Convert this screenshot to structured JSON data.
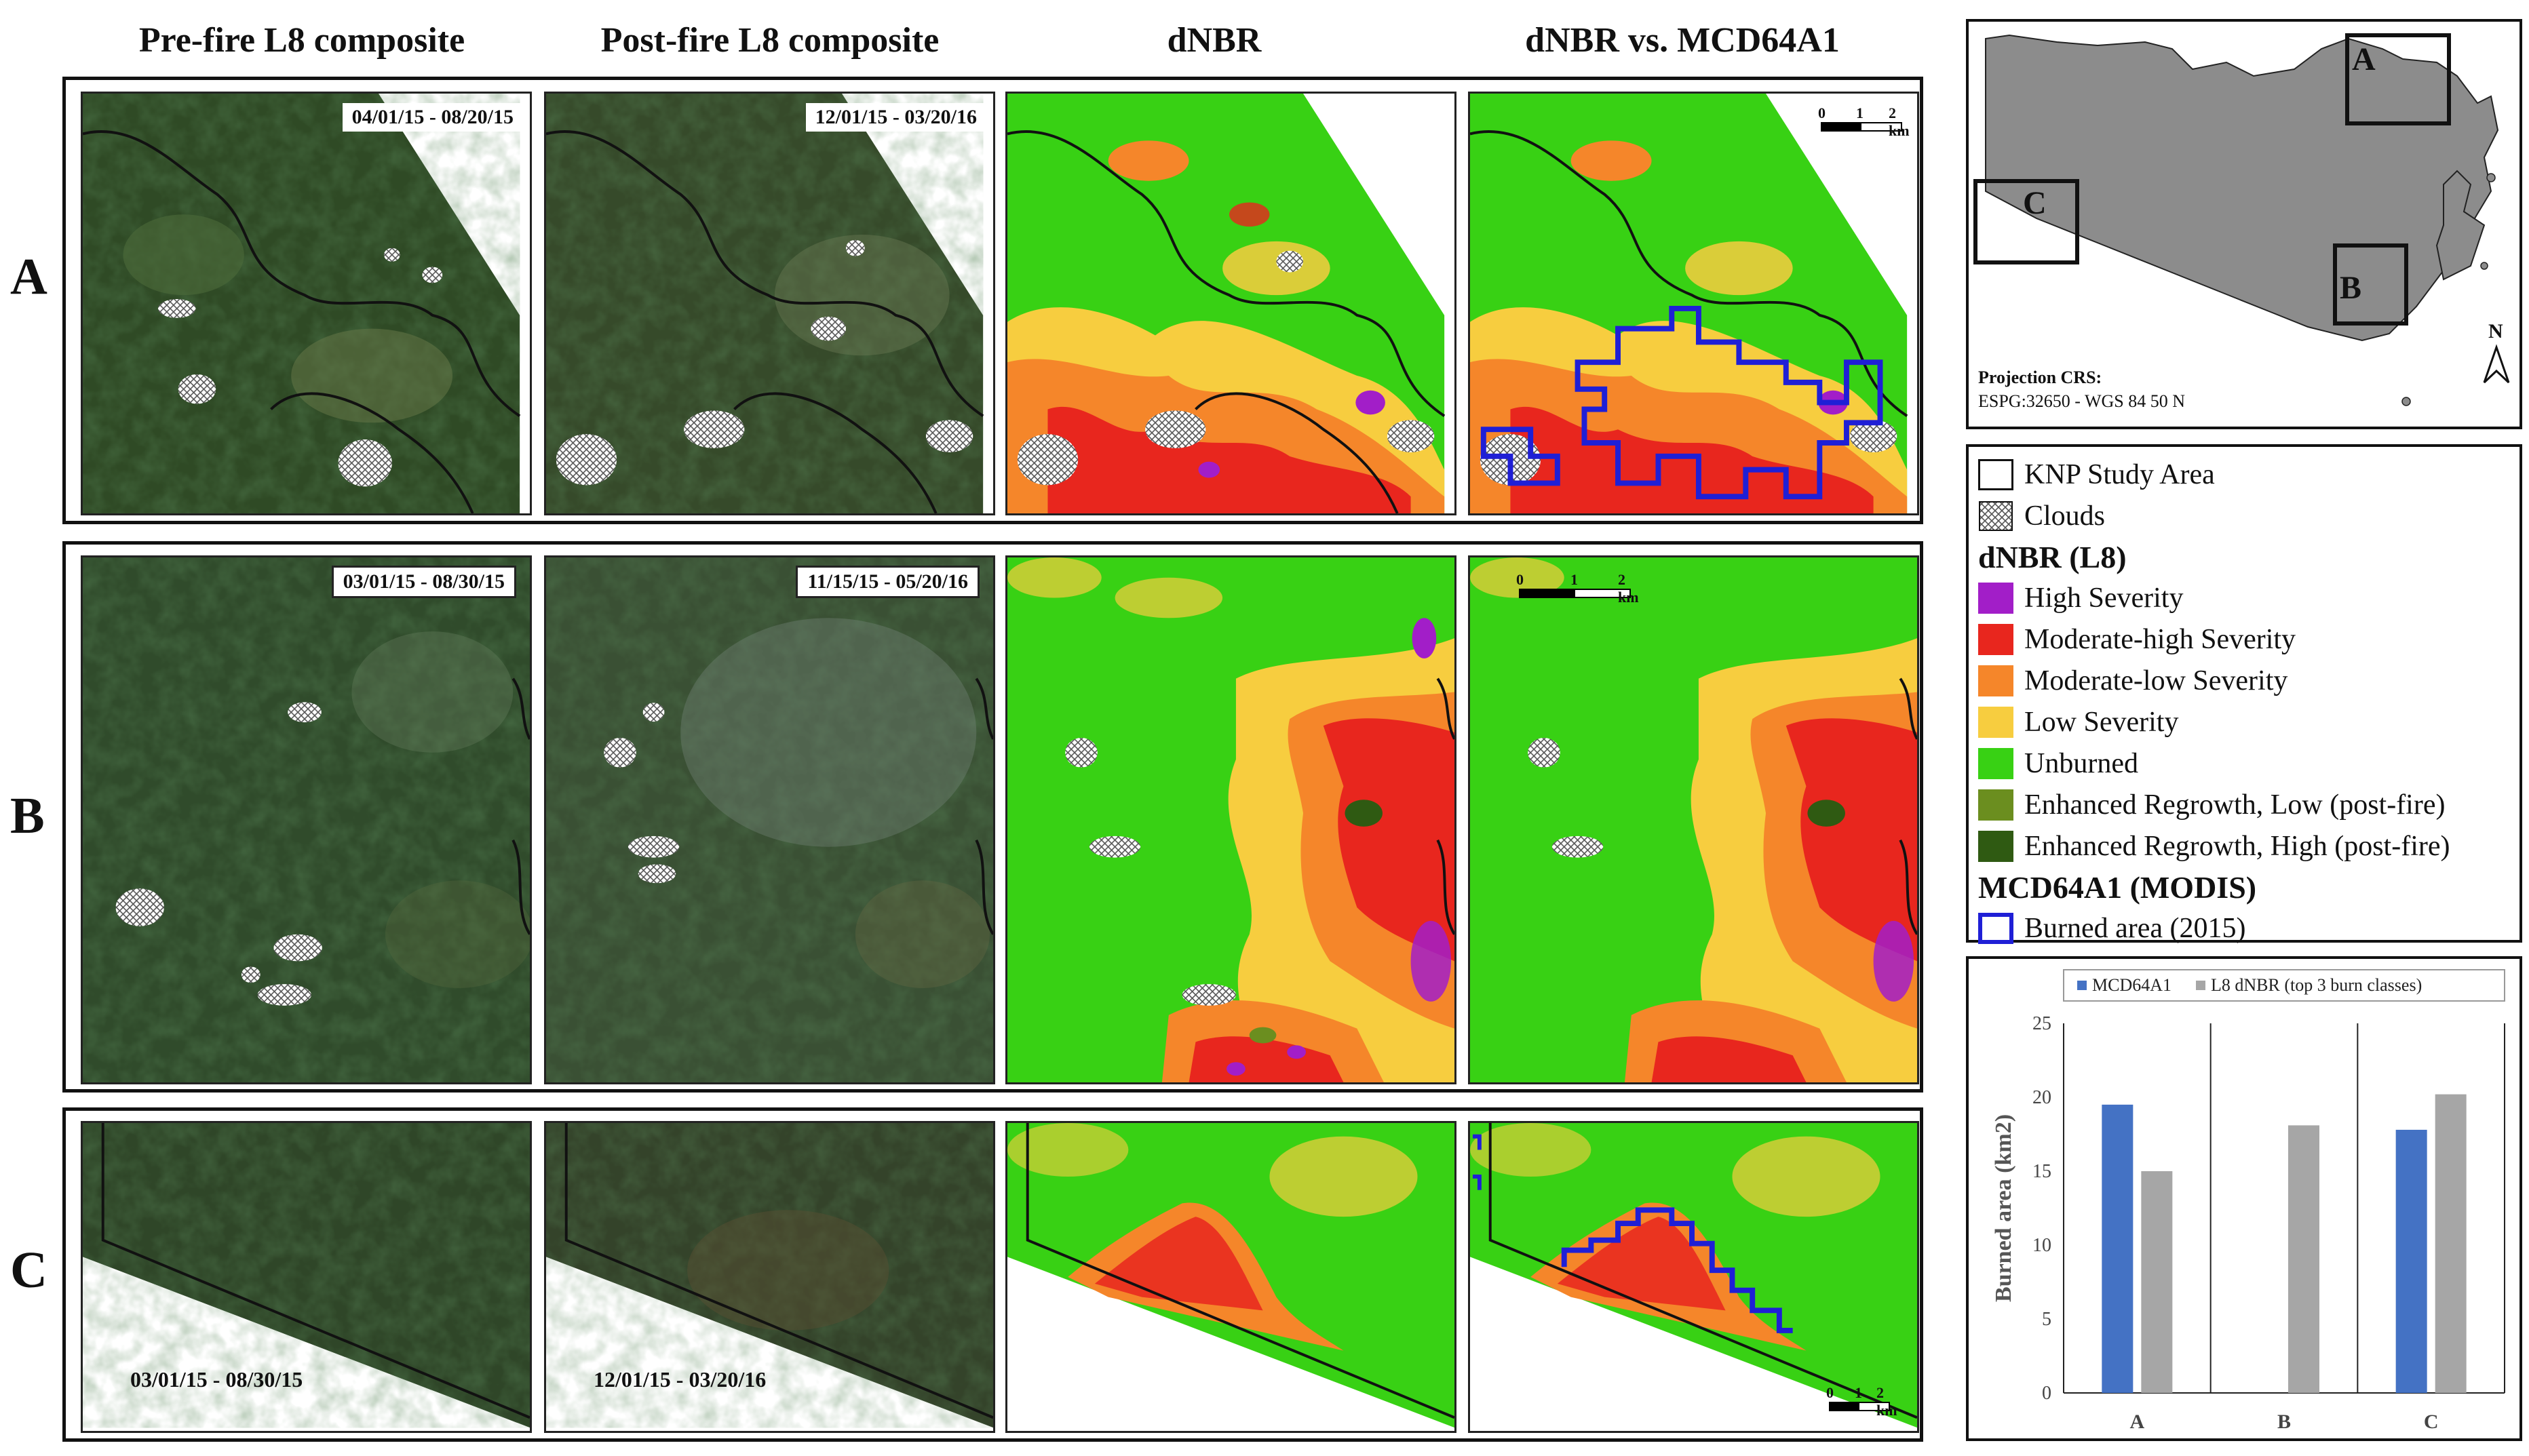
{
  "columns": [
    "Pre-fire L8 composite",
    "Post-fire L8 composite",
    "dNBR",
    "dNBR vs.  MCD64A1"
  ],
  "rows": [
    {
      "label": "A",
      "dates": [
        "04/01/15 - 08/20/15",
        "12/01/15 - 03/20/16"
      ]
    },
    {
      "label": "B",
      "dates": [
        "03/01/15 - 08/30/15",
        "11/15/15 - 05/20/16"
      ]
    },
    {
      "label": "C",
      "dates": [
        "03/01/15 - 08/30/15",
        "12/01/15 - 03/20/16"
      ]
    }
  ],
  "scalebar": {
    "ticks": [
      "0",
      "1",
      "2 km"
    ]
  },
  "locator": {
    "boxes": [
      "A",
      "B",
      "C"
    ],
    "projection_title": "Projection CRS:",
    "projection_value": "ESPG:32650 - WGS 84 50 N",
    "north_label": "N"
  },
  "legend": {
    "study_area": "KNP Study Area",
    "clouds": "Clouds",
    "dnbr_title": "dNBR (L8)",
    "classes": [
      {
        "label": "High Severity",
        "color": "#a21ec8"
      },
      {
        "label": "Moderate-high Severity",
        "color": "#e8261e"
      },
      {
        "label": "Moderate-low Severity",
        "color": "#f5862a"
      },
      {
        "label": "Low Severity",
        "color": "#f7cd3f"
      },
      {
        "label": "Unburned",
        "color": "#38d114"
      },
      {
        "label": "Enhanced Regrowth,  Low (post-fire)",
        "color": "#6b8e1f"
      },
      {
        "label": "Enhanced Regrowth,  High (post-fire)",
        "color": "#2f5a12"
      }
    ],
    "modis_title": "MCD64A1 (MODIS)",
    "burned_area": "Burned area (2015)",
    "burned_color": "#1f1fd6"
  },
  "chart_data": {
    "type": "bar",
    "categories": [
      "A",
      "B",
      "C"
    ],
    "series": [
      {
        "name": "MCD64A1",
        "values": [
          19.5,
          0,
          17.8
        ],
        "color": "#4472c4"
      },
      {
        "name": "L8 dNBR (top 3 burn classes)",
        "values": [
          15.0,
          18.1,
          20.2
        ],
        "color": "#a6a6a6"
      }
    ],
    "ylabel": "Burned area (km2)",
    "ylim": [
      0,
      25
    ],
    "yticks": [
      0,
      5,
      10,
      15,
      20,
      25
    ],
    "legend_position": "top"
  }
}
